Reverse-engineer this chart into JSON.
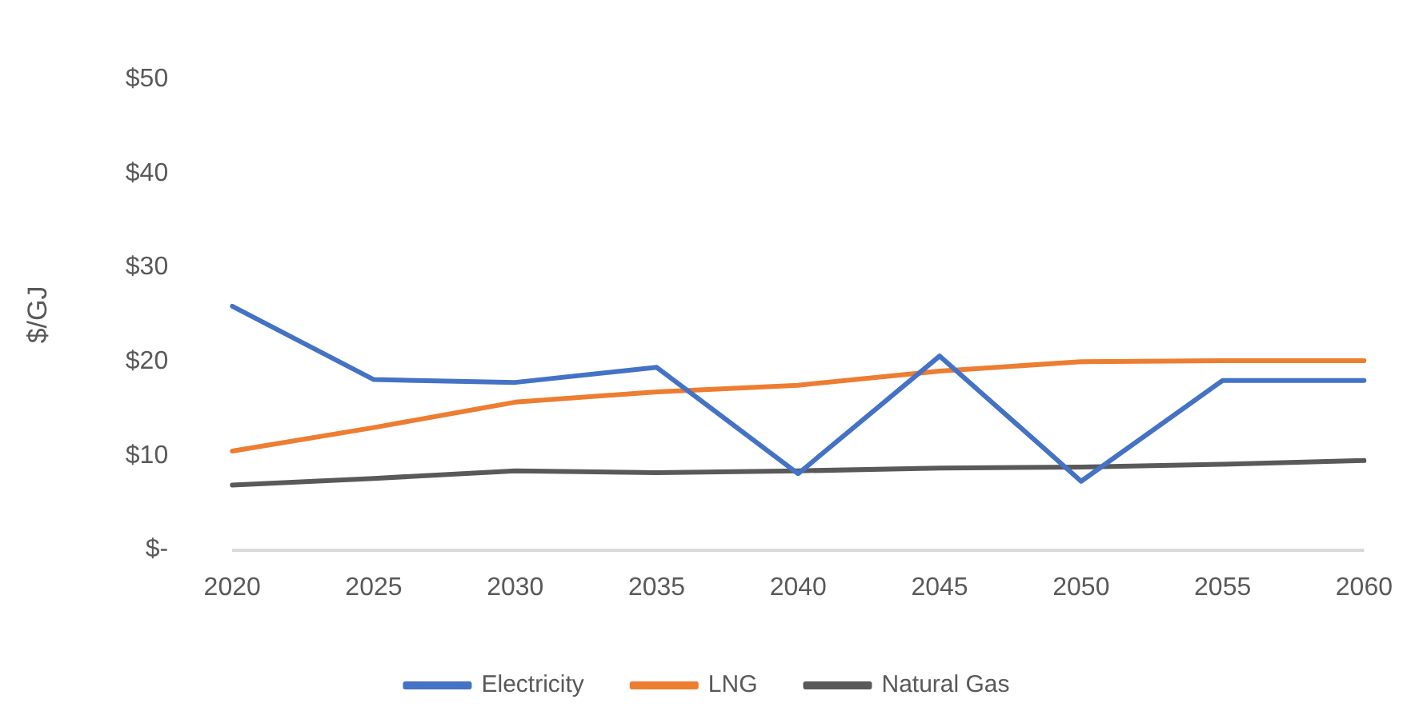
{
  "chart_data": {
    "type": "line",
    "ylabel": "$/GJ",
    "categories": [
      "2020",
      "2025",
      "2030",
      "2035",
      "2040",
      "2045",
      "2050",
      "2055",
      "2060"
    ],
    "series": [
      {
        "name": "Electricity",
        "color": "#4472c4",
        "values": [
          25.9,
          18.1,
          17.8,
          19.4,
          8.1,
          20.6,
          7.3,
          18,
          18
        ]
      },
      {
        "name": "LNG",
        "color": "#ed7d31",
        "values": [
          10.5,
          13,
          15.7,
          16.8,
          17.5,
          19,
          20,
          20.1,
          20.1
        ]
      },
      {
        "name": "Natural Gas",
        "color": "#595959",
        "values": [
          6.9,
          7.6,
          8.4,
          8.2,
          8.4,
          8.7,
          8.8,
          9.1,
          9.5
        ]
      }
    ],
    "ylim": [
      0,
      50
    ],
    "yticks": [
      {
        "value": 0,
        "label": "$-"
      },
      {
        "value": 10,
        "label": "$10"
      },
      {
        "value": 20,
        "label": "$20"
      },
      {
        "value": 30,
        "label": "$30"
      },
      {
        "value": 40,
        "label": "$40"
      },
      {
        "value": 50,
        "label": "$50"
      }
    ],
    "grid": false,
    "legend": "bottom",
    "marker": "none",
    "line_style": "solid"
  }
}
